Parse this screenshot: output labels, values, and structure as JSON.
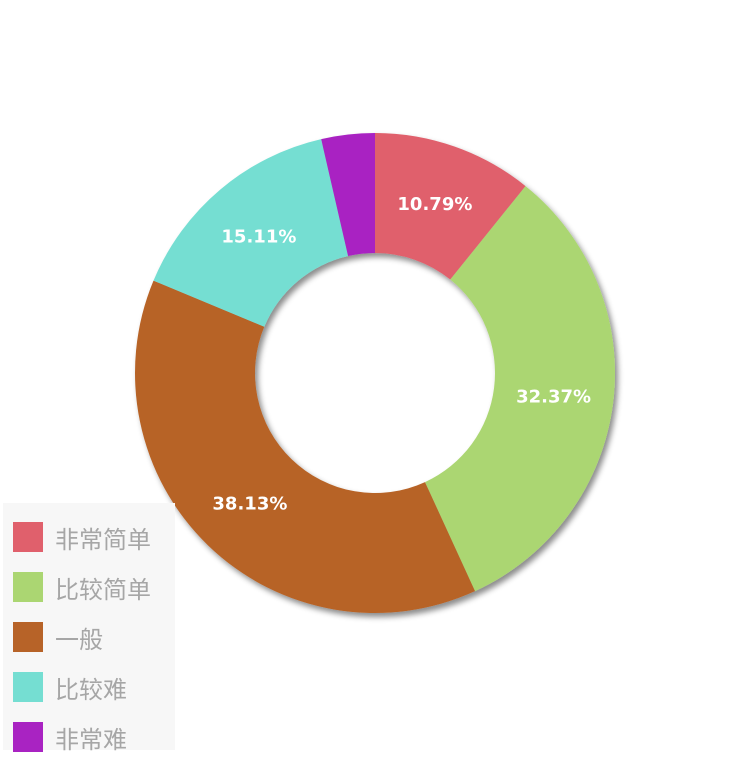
{
  "chart_data": {
    "type": "pie",
    "variant": "donut",
    "legend_position": "bottom-left",
    "slices": [
      {
        "name": "非常简单",
        "value": 10.79,
        "label": "10.79%",
        "color": "#e0606c"
      },
      {
        "name": "比较简单",
        "value": 32.37,
        "label": "32.37%",
        "color": "#abd672"
      },
      {
        "name": "一般",
        "value": 38.13,
        "label": "38.13%",
        "color": "#b76328"
      },
      {
        "name": "比较难",
        "value": 15.11,
        "label": "15.11%",
        "color": "#75ded2"
      },
      {
        "name": "非常难",
        "value": 3.6,
        "label": "",
        "color": "#a923c2"
      }
    ]
  }
}
